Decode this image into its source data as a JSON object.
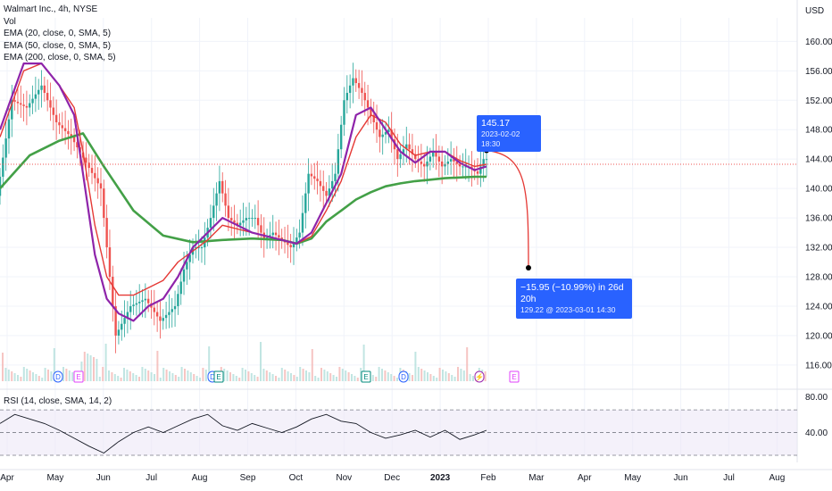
{
  "symbol": "Walmart Inc., 4h, NYSE",
  "currency": "USD",
  "legend": [
    "Vol",
    "EMA (20, close, 0, SMA, 5)",
    "EMA (50, close, 0, SMA, 5)",
    "EMA (200, close, 0, SMA, 5)"
  ],
  "rsi_label": "RSI (14, close, SMA, 14, 2)",
  "projection": {
    "start_label": "145.17",
    "start_date": "2023-02-02 18:30",
    "end_label": "−15.95 (−10.99%) in 26d 20h",
    "end_sub": "129.22 @ 2023-03-01  14:30"
  },
  "colors": {
    "ema20": "#e53935",
    "ema50": "#8e24aa",
    "ema200": "#43a047",
    "up": "#26a69a",
    "down": "#ef5350",
    "callout": "#2962ff",
    "rsi": "#131722"
  },
  "chart_data": {
    "type": "line",
    "title": "Walmart Inc., 4h, NYSE",
    "x_ticks": [
      "Apr",
      "May",
      "Jun",
      "Jul",
      "Aug",
      "Sep",
      "Oct",
      "Nov",
      "Dec",
      "2023",
      "Feb",
      "Mar",
      "Apr",
      "May",
      "Jun",
      "Jul",
      "Aug"
    ],
    "y_ticks": [
      116,
      120,
      124,
      128,
      132,
      136,
      140,
      144,
      148,
      152,
      156,
      160
    ],
    "ylim": [
      113.8,
      163.2
    ],
    "rsi_ticks": [
      40,
      80
    ],
    "series": [
      {
        "name": "Price",
        "x": [
          0,
          5,
          10,
          15,
          20,
          25,
          35,
          40,
          45,
          50,
          55,
          60,
          63,
          66,
          69,
          72,
          75,
          78,
          81,
          84,
          87,
          90,
          93,
          96,
          99,
          102,
          105,
          108,
          111,
          114,
          117,
          120,
          123,
          126,
          129,
          132,
          135,
          138,
          141,
          144,
          147,
          150,
          153,
          156,
          159,
          162,
          164
        ],
        "values": [
          139,
          152,
          151,
          154,
          149,
          147,
          140,
          120,
          124,
          125,
          122,
          124,
          129,
          132,
          132,
          136,
          141,
          136,
          135,
          136,
          136,
          133,
          134,
          133,
          132,
          134,
          142,
          141,
          139,
          142,
          152,
          155,
          153,
          150,
          147,
          148,
          144,
          146,
          144,
          143,
          145,
          143,
          144,
          143,
          143,
          142,
          144
        ]
      },
      {
        "name": "EMA (200, close, 0, SMA, 5)",
        "x": [
          0,
          10,
          20,
          28,
          35,
          45,
          55,
          65,
          75,
          85,
          95,
          100,
          105,
          110,
          115,
          120,
          125,
          130,
          135,
          140,
          145,
          150,
          155,
          160,
          164
        ],
        "values": [
          140,
          144.5,
          146.5,
          147.5,
          143,
          137,
          133.6,
          132.7,
          133,
          133.2,
          133,
          132.5,
          133.2,
          135.5,
          137,
          138.5,
          139.5,
          140.3,
          140.7,
          141,
          141.2,
          141.4,
          141.5,
          141.6,
          141.6
        ]
      },
      {
        "name": "EMA (20, close, 0, SMA, 5)",
        "x": [
          0,
          8,
          14,
          20,
          25,
          28,
          32,
          36,
          40,
          45,
          50,
          55,
          60,
          65,
          70,
          75,
          80,
          85,
          90,
          95,
          100,
          105,
          110,
          115,
          120,
          125,
          130,
          135,
          140,
          145,
          150,
          155,
          160,
          164
        ],
        "values": [
          147,
          156,
          157,
          154,
          151,
          145,
          135,
          128,
          125.5,
          125.5,
          126.5,
          127.5,
          130,
          131.5,
          133,
          135,
          134.5,
          134,
          133.5,
          133,
          132.5,
          133.5,
          137,
          141,
          147,
          150,
          149,
          146,
          144.5,
          145,
          145,
          143.8,
          143,
          143.3
        ]
      },
      {
        "name": "EMA (50, close, 0, SMA, 5)",
        "x": [
          0,
          8,
          14,
          20,
          25,
          28,
          32,
          36,
          40,
          45,
          50,
          55,
          60,
          65,
          70,
          75,
          80,
          85,
          90,
          95,
          100,
          105,
          110,
          115,
          120,
          125,
          130,
          135,
          140,
          145,
          150,
          155,
          160,
          164
        ],
        "values": [
          148,
          157,
          157,
          154,
          150,
          142,
          131,
          125,
          123,
          122,
          124,
          125,
          128,
          132,
          134,
          136,
          135,
          134,
          133.5,
          133,
          132.5,
          134,
          138,
          142,
          150,
          151,
          148,
          145,
          143.5,
          145,
          145,
          143.5,
          142.5,
          143
        ]
      },
      {
        "name": "RSI",
        "x": [
          0,
          5,
          10,
          15,
          20,
          25,
          30,
          35,
          40,
          45,
          50,
          55,
          60,
          65,
          70,
          75,
          80,
          85,
          90,
          95,
          100,
          105,
          110,
          115,
          120,
          125,
          130,
          135,
          140,
          145,
          150,
          155,
          160,
          164
        ],
        "values": [
          58,
          66,
          62,
          58,
          52,
          45,
          38,
          32,
          42,
          50,
          55,
          50,
          56,
          62,
          66,
          56,
          52,
          58,
          54,
          50,
          55,
          62,
          66,
          60,
          58,
          50,
          45,
          48,
          52,
          46,
          52,
          44,
          48,
          52
        ]
      }
    ]
  }
}
